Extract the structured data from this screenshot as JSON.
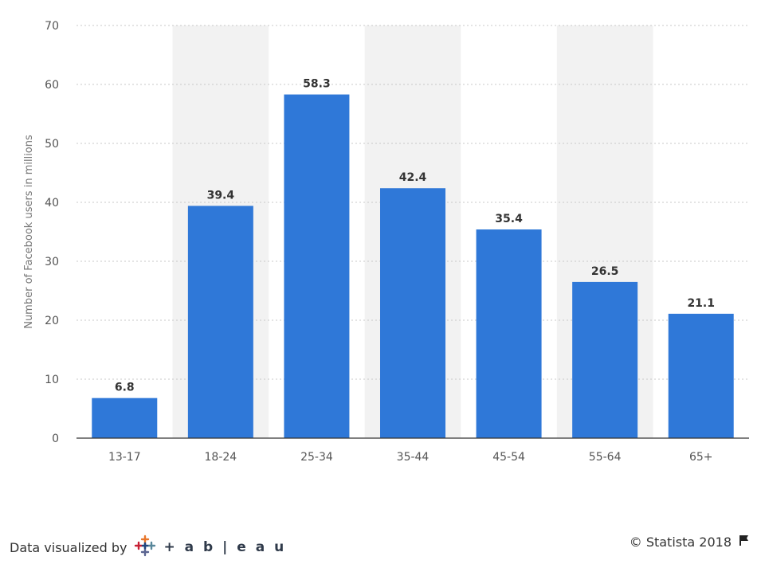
{
  "chart_data": {
    "type": "bar",
    "categories": [
      "13-17",
      "18-24",
      "25-34",
      "35-44",
      "45-54",
      "55-64",
      "65+"
    ],
    "values": [
      6.8,
      39.4,
      58.3,
      42.4,
      35.4,
      26.5,
      21.1
    ],
    "value_labels": [
      "6.8",
      "39.4",
      "58.3",
      "42.4",
      "35.4",
      "26.5",
      "21.1"
    ],
    "ylabel": "Number of Facebook users in millions",
    "xlabel": "",
    "ylim": [
      0,
      70
    ],
    "yticks": [
      0,
      10,
      20,
      30,
      40,
      50,
      60,
      70
    ],
    "grid": true,
    "bar_color": "#2f78d8",
    "band_color": "#f2f2f2"
  },
  "footer": {
    "left_text": "Data visualized by",
    "tableau_text": "+ a b | e a u",
    "right_text": "© Statista 2018"
  },
  "icons": {
    "tableau_logo": "tableau-logo-icon",
    "flag": "flag-icon"
  }
}
